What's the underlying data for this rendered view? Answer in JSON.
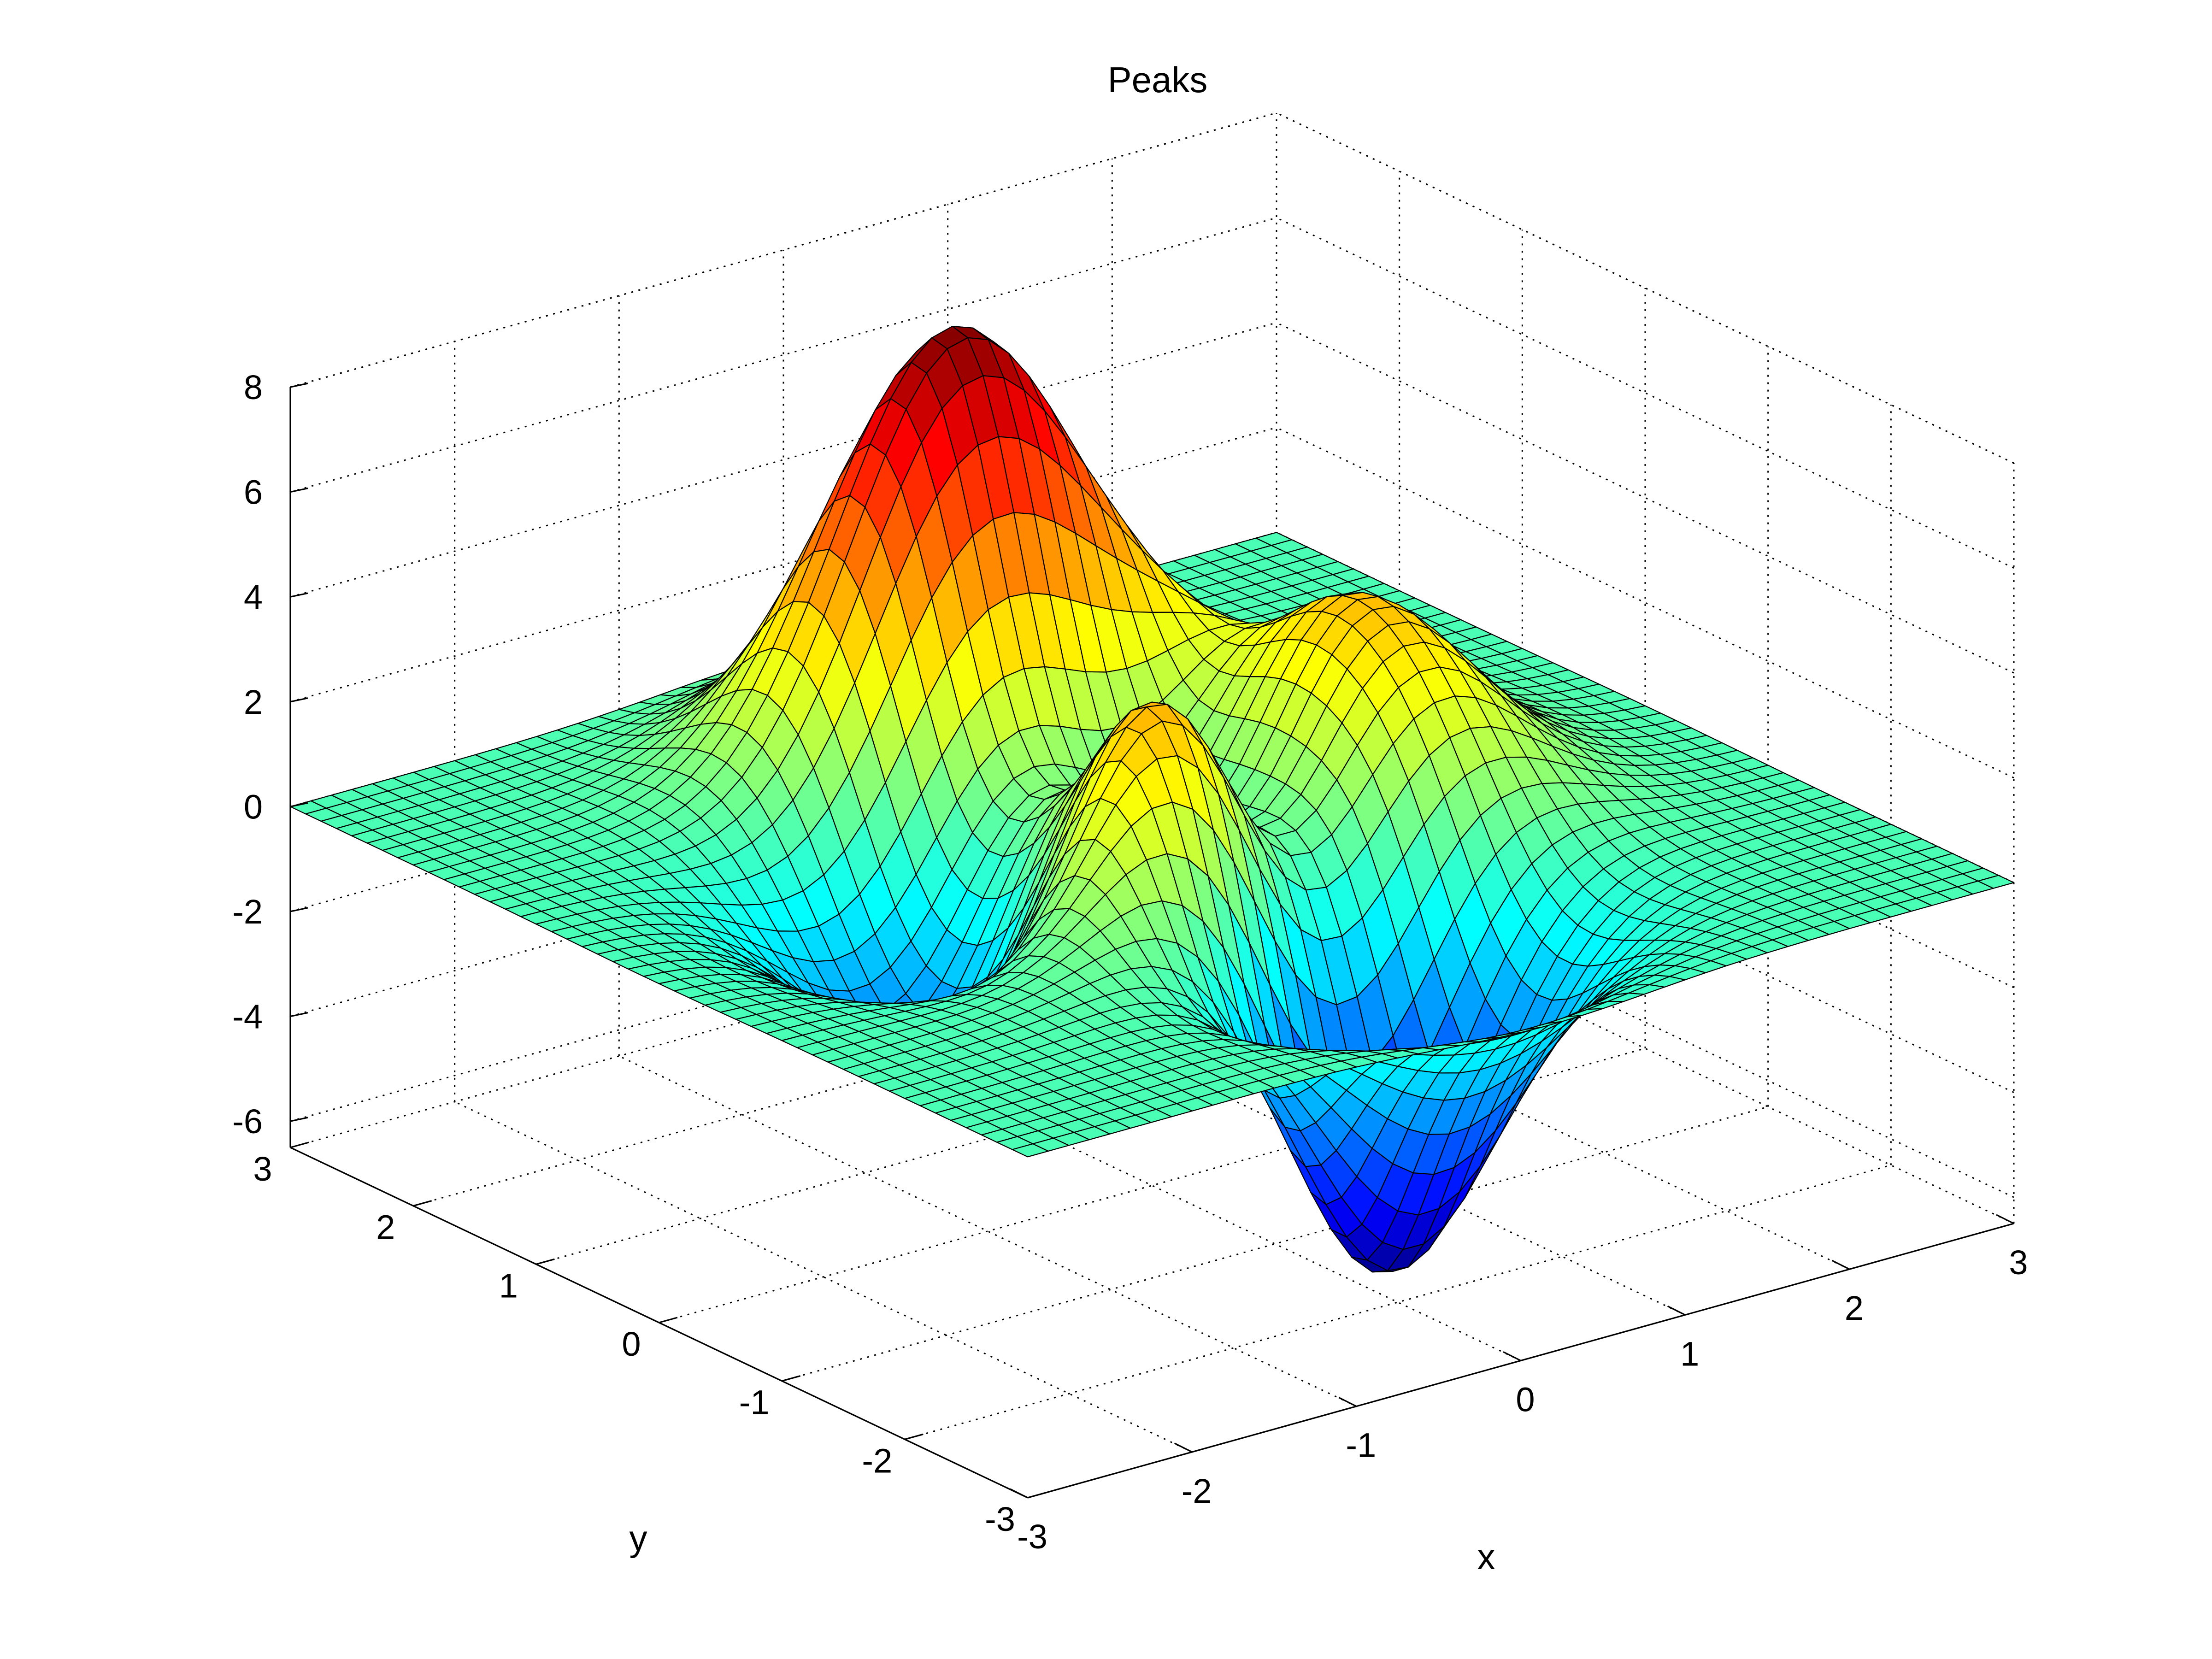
{
  "chart_data": {
    "type": "surface",
    "title": "Peaks",
    "xlabel": "x",
    "ylabel": "y",
    "zlabel": "",
    "function": "3*(1-x)^2*exp(-x^2-(y+1)^2) - 10*(x/5-x^3-y^5)*exp(-x^2-y^2) - 1/3*exp(-(x+1)^2-y^2)",
    "xlim": [
      -3,
      3
    ],
    "ylim": [
      -3,
      3
    ],
    "zlim": [
      -6.5,
      8
    ],
    "grid_points": 49,
    "x_ticks": [
      "-3",
      "-2",
      "-1",
      "0",
      "1",
      "2",
      "3"
    ],
    "y_ticks": [
      "-3",
      "-2",
      "-1",
      "0",
      "1",
      "2",
      "3"
    ],
    "z_ticks": [
      "-6",
      "-4",
      "-2",
      "0",
      "2",
      "4",
      "6",
      "8"
    ],
    "z_tick_values": [
      -6,
      -4,
      -2,
      0,
      2,
      4,
      6,
      8
    ],
    "x_tick_values": [
      -3,
      -2,
      -1,
      0,
      1,
      2,
      3
    ],
    "y_tick_values": [
      -3,
      -2,
      -1,
      0,
      1,
      2,
      3
    ],
    "z_max": 8.1,
    "z_min": -6.55,
    "colormap": "jet",
    "edge_color": "#000000",
    "grid": true,
    "view": "3d default (az -37.5, el 30)"
  }
}
